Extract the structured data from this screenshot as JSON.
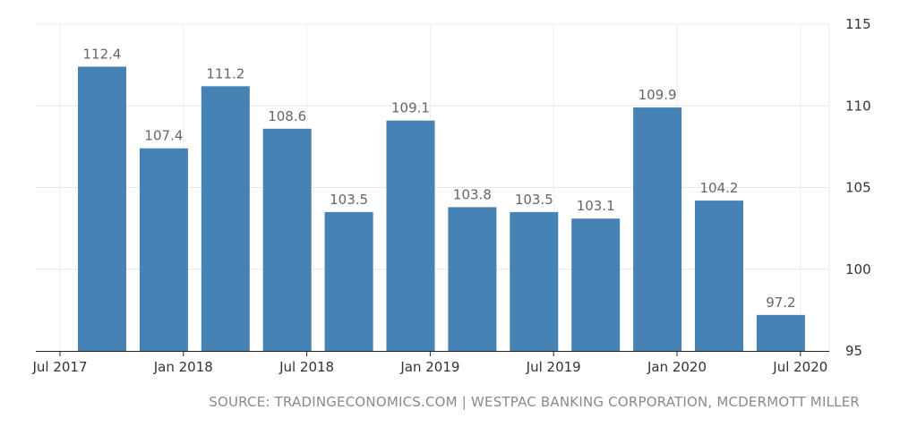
{
  "chart_data": {
    "type": "bar",
    "categories": [
      "Sep 2017",
      "Dec 2017",
      "Mar 2018",
      "Jun 2018",
      "Sep 2018",
      "Dec 2018",
      "Mar 2019",
      "Jun 2019",
      "Sep 2019",
      "Dec 2019",
      "Mar 2020",
      "Jun 2020"
    ],
    "values": [
      112.4,
      107.4,
      111.2,
      108.6,
      103.5,
      109.1,
      103.8,
      103.5,
      103.1,
      109.9,
      104.2,
      97.2
    ],
    "x_tick_labels": [
      "Jul 2017",
      "Jan 2018",
      "Jul 2018",
      "Jan 2019",
      "Jul 2019",
      "Jan 2020",
      "Jul 2020"
    ],
    "y_tick_labels": [
      "95",
      "100",
      "105",
      "110",
      "115"
    ],
    "ylim": [
      95,
      115
    ],
    "y_axis_position": "right",
    "grid": true,
    "bar_color": "#4682b4",
    "title": "",
    "xlabel": "",
    "ylabel": ""
  },
  "source_text": "SOURCE: TRADINGECONOMICS.COM | WESTPAC BANKING CORPORATION, MCDERMOTT MILLER"
}
